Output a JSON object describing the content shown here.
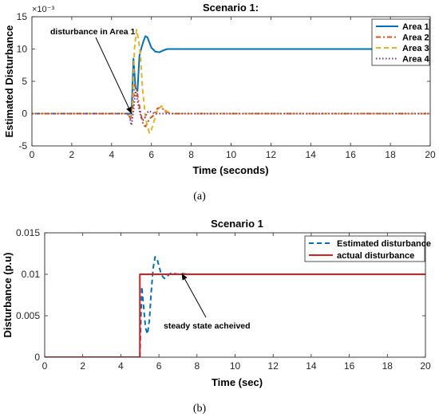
{
  "chart_data": [
    {
      "type": "line",
      "title": "Scenario 1:",
      "xlabel": "Time (seconds)",
      "ylabel": "Estimated Disturbance",
      "y_multiplier": "×10⁻³",
      "xlim": [
        0,
        20
      ],
      "ylim": [
        -5,
        15
      ],
      "xticks": [
        "0",
        "2",
        "4",
        "6",
        "8",
        "10",
        "12",
        "14",
        "16",
        "18",
        "20"
      ],
      "yticks": [
        "-5",
        "0",
        "5",
        "10",
        "15"
      ],
      "legend_position": "top-right",
      "caption": "(a)",
      "annotation": {
        "text": "disturbance in Area 1",
        "arrow_to": [
          5.0,
          0.0
        ]
      },
      "series": [
        {
          "name": "Area 1",
          "color": "#0072BD",
          "style": "solid",
          "x": [
            0,
            4.9,
            5.0,
            5.1,
            5.2,
            5.3,
            5.4,
            5.5,
            5.6,
            5.7,
            5.8,
            5.9,
            6.0,
            6.2,
            6.4,
            6.6,
            6.8,
            7.0,
            7.5,
            8,
            20
          ],
          "y": [
            0,
            0,
            0,
            8.5,
            4.0,
            3.5,
            9.0,
            10.2,
            11.2,
            12.0,
            11.8,
            11.0,
            10.2,
            9.6,
            9.5,
            9.8,
            10.0,
            10.0,
            10.0,
            10.0,
            10.0
          ]
        },
        {
          "name": "Area 2",
          "color": "#D95319",
          "style": "dashdot",
          "x": [
            0,
            4.8,
            4.95,
            5.05,
            5.15,
            5.25,
            5.35,
            5.5,
            5.6,
            5.7,
            5.8,
            5.9,
            6.1,
            6.3,
            6.5,
            6.7,
            7.0,
            20
          ],
          "y": [
            0,
            0,
            -0.8,
            0.5,
            4.5,
            4.0,
            2.0,
            -0.5,
            -1.8,
            -2.0,
            -1.5,
            -0.8,
            -0.3,
            0.8,
            1.0,
            0.3,
            0,
            0
          ]
        },
        {
          "name": "Area 3",
          "color": "#EDB120",
          "style": "dashed",
          "x": [
            0,
            4.8,
            4.95,
            5.05,
            5.15,
            5.25,
            5.35,
            5.45,
            5.55,
            5.7,
            5.8,
            5.9,
            6.0,
            6.1,
            6.3,
            6.5,
            6.7,
            7.0,
            20
          ],
          "y": [
            0,
            0,
            -0.5,
            1.0,
            10.0,
            13.0,
            11.5,
            9.0,
            4.0,
            -0.5,
            -2.0,
            -3.0,
            -2.5,
            -1.5,
            0.5,
            1.2,
            0.5,
            0,
            0
          ]
        },
        {
          "name": "Area 4",
          "color": "#7E2F8E",
          "style": "dotted",
          "x": [
            0,
            4.8,
            4.9,
            5.0,
            5.1,
            5.2,
            5.3,
            5.4,
            5.5,
            5.6,
            5.7,
            5.8,
            5.9,
            6.0,
            6.2,
            6.5,
            20
          ],
          "y": [
            0,
            0,
            -0.5,
            -1.8,
            0.5,
            3.5,
            2.0,
            0.5,
            -0.8,
            -1.0,
            -0.5,
            0.2,
            0.4,
            0.2,
            0,
            0,
            0
          ]
        }
      ]
    },
    {
      "type": "line",
      "title": "Scenario 1",
      "xlabel": "Time (sec)",
      "ylabel": "Disturbance (p.u)",
      "xlim": [
        0,
        20
      ],
      "ylim": [
        0,
        0.015
      ],
      "xticks": [
        "0",
        "2",
        "4",
        "6",
        "8",
        "10",
        "12",
        "14",
        "16",
        "18",
        "20"
      ],
      "yticks": [
        "0",
        "0.005",
        "0.01",
        "0.015"
      ],
      "legend_position": "top-right",
      "caption": "(b)",
      "annotation": {
        "text": "steady state acheived",
        "arrow_to": [
          7.2,
          0.0101
        ]
      },
      "series": [
        {
          "name": "Estimated disturbance",
          "color": "#0072BD",
          "style": "dashed",
          "x": [
            0,
            4.9,
            5.0,
            5.1,
            5.2,
            5.3,
            5.4,
            5.5,
            5.6,
            5.7,
            5.8,
            5.9,
            6.0,
            6.1,
            6.2,
            6.3,
            6.4,
            6.5,
            6.6,
            6.7,
            6.8,
            7.0,
            7.2,
            7.5,
            8,
            20
          ],
          "y": [
            0,
            0,
            0,
            0.0085,
            0.006,
            0.0035,
            0.0028,
            0.0045,
            0.008,
            0.0108,
            0.0121,
            0.0119,
            0.011,
            0.0102,
            0.0097,
            0.0095,
            0.0096,
            0.0099,
            0.0101,
            0.0102,
            0.0101,
            0.01,
            0.0101,
            0.01,
            0.01,
            0.01
          ]
        },
        {
          "name": "actual disturbance",
          "color": "#E41A1C",
          "style": "solid",
          "x": [
            0,
            5,
            5,
            20
          ],
          "y": [
            0,
            0,
            0.01,
            0.01
          ]
        }
      ]
    }
  ]
}
